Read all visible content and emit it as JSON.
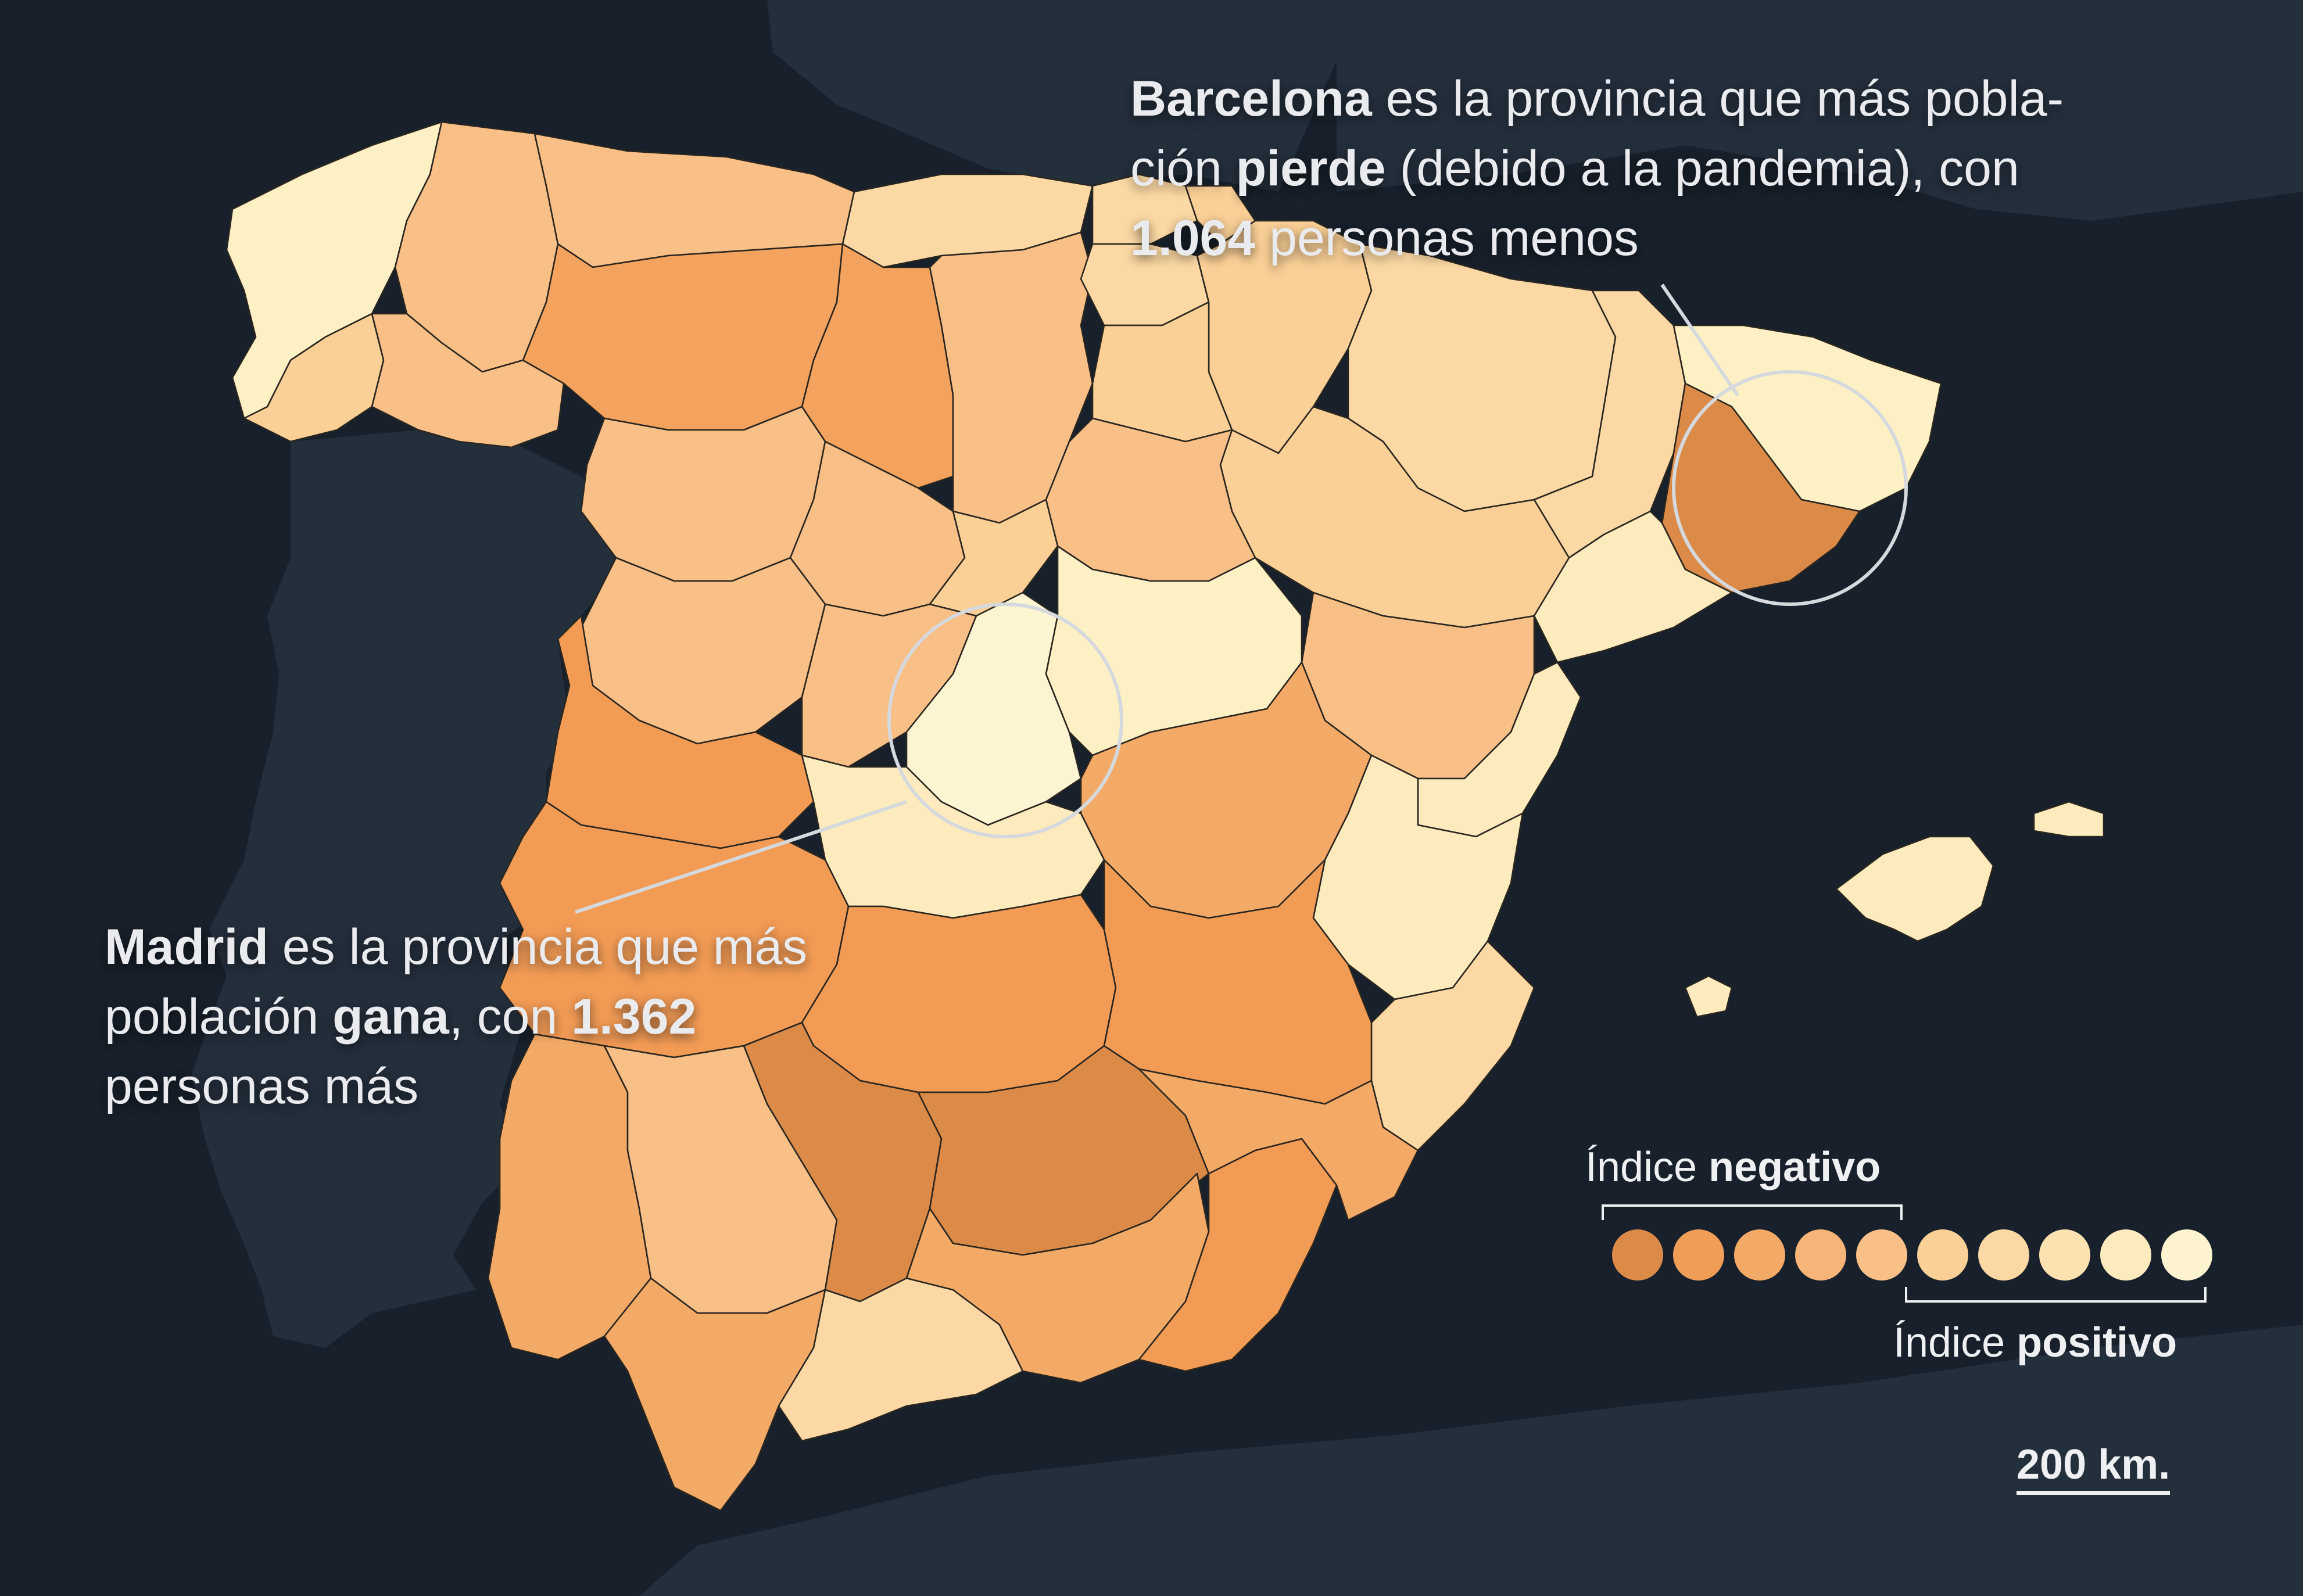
{
  "annotations": {
    "barcelona": {
      "bold_province": "Barcelona",
      "text_1": " es la provincia que más pobla-",
      "text_2": "ción ",
      "bold_verb": "pierde",
      "text_3": " (debido a la pandemia), con",
      "bold_number": "1.064",
      "text_4": " personas menos"
    },
    "madrid": {
      "bold_province": "Madrid",
      "text_1": " es la provincia que más",
      "text_2": "población ",
      "bold_verb": "gana",
      "text_3": ", con ",
      "bold_number": "1.362",
      "text_4": "personas más"
    }
  },
  "legend": {
    "negative_prefix": "Índice ",
    "negative_bold": "negativo",
    "positive_prefix": "Índice ",
    "positive_bold": "positivo",
    "swatches": [
      "#dc8a48",
      "#ef9d57",
      "#f4aa67",
      "#f6b478",
      "#f8bf86",
      "#fbd097",
      "#fcd9a4",
      "#fde2b1",
      "#fdebbd",
      "#fdf4cf"
    ]
  },
  "scale": {
    "label": "200 km."
  },
  "colors": {
    "sea": "#17202b",
    "land_neighbor": "#242f3c",
    "highlight_ring": "#d5d9de",
    "province_border": "#2a2620"
  }
}
